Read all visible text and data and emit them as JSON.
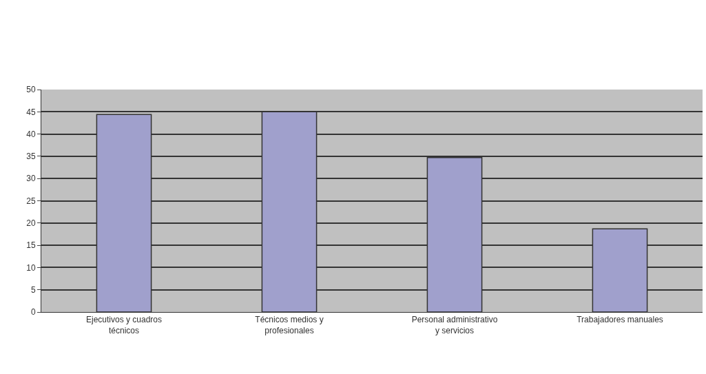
{
  "chart_data": {
    "type": "bar",
    "categories": [
      "Ejecutivos y cuadros técnicos",
      "Técnicos medios y profesionales",
      "Personal administrativo y servicios",
      "Trabajadores manuales"
    ],
    "values": [
      44.4,
      45,
      34.7,
      18.7
    ],
    "color": "#a0a0cc",
    "ylim": [
      0,
      50
    ],
    "yticks": [
      0,
      5,
      10,
      15,
      20,
      25,
      30,
      35,
      40,
      45,
      50
    ],
    "grid": "y"
  }
}
